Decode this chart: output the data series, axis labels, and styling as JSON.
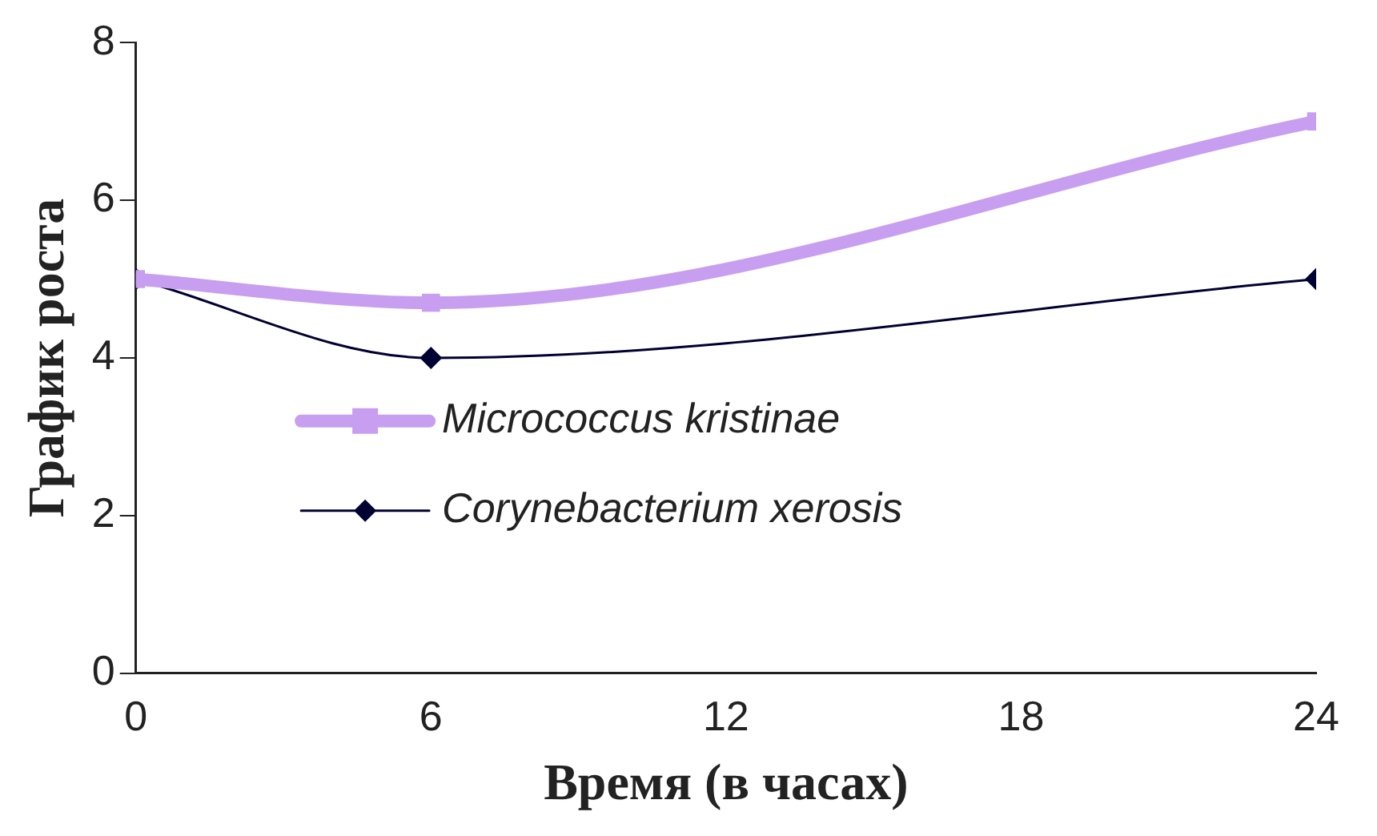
{
  "chart_data": {
    "type": "line",
    "xlabel": "Время (в часах)",
    "ylabel": "График роста",
    "x": [
      0,
      6,
      24
    ],
    "series": [
      {
        "name": "Micrococcus kristinae",
        "color": "#c89ef0",
        "values": [
          5,
          4.7,
          7
        ],
        "marker": "square"
      },
      {
        "name": "Corynebacterium xerosis",
        "color": "#000033",
        "values": [
          5,
          4,
          5
        ],
        "marker": "diamond"
      }
    ],
    "xlim": [
      0,
      24
    ],
    "xticks": [
      0,
      6,
      12,
      18,
      24
    ],
    "ylim": [
      0,
      8
    ],
    "yticks": [
      0,
      2,
      4,
      6,
      8
    ],
    "grid": false,
    "legend": "bottom"
  }
}
